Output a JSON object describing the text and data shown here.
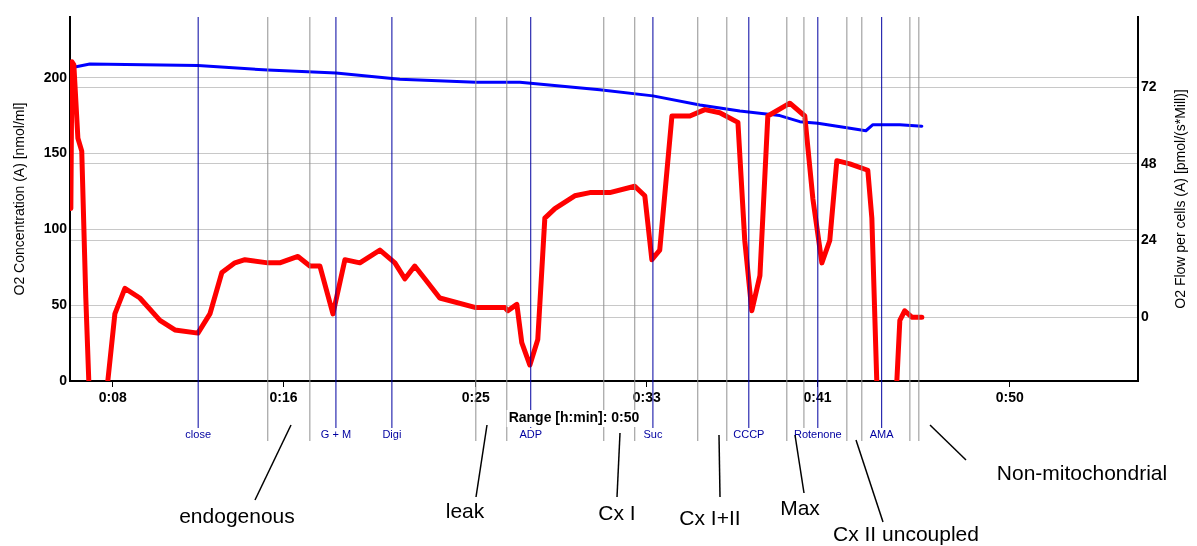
{
  "chart_data": {
    "type": "line",
    "xlabel": "Range [h:min]: 0:50",
    "ylabel": "O2 Concentration (A) [nmol/ml]",
    "y2label": "O2 Flow per cells (A) [pmol/(s*Mill)]",
    "xlim": [
      6,
      56
    ],
    "xticks": [
      {
        "value": 8,
        "label": "0:08"
      },
      {
        "value": 16,
        "label": "0:16"
      },
      {
        "value": 25,
        "label": "0:25"
      },
      {
        "value": 33,
        "label": "0:33"
      },
      {
        "value": 41,
        "label": "0:41"
      },
      {
        "value": 50,
        "label": "0:50"
      }
    ],
    "ylim": [
      0,
      240
    ],
    "yticks": [
      0,
      50,
      100,
      150,
      200
    ],
    "y2lim": [
      -20,
      94
    ],
    "y2ticks": [
      0,
      24,
      48,
      72
    ],
    "grid": "y",
    "legend": false,
    "marker": "none",
    "line_style": "solid",
    "series": [
      {
        "color": "#0000ff",
        "x": [
          6.23,
          6.93,
          11.99,
          15.26,
          18.45,
          21.44,
          25.0,
          27.06,
          30.8,
          33.29,
          35.49,
          37.36,
          39.23,
          40.17,
          41.01,
          42.37,
          43.26,
          43.59,
          44.85,
          45.88
        ],
        "values": [
          207,
          209,
          208,
          205,
          203,
          199,
          197,
          197,
          192,
          188,
          182,
          178,
          175,
          171,
          170,
          167,
          165,
          169,
          169,
          168
        ]
      },
      {
        "color": "#ff0000",
        "axis": "y2",
        "x": [
          6.04,
          6.09,
          6.18,
          6.37,
          6.55,
          6.74,
          6.88,
          7.3,
          7.77,
          8.1,
          8.57,
          9.27,
          10.21,
          10.91,
          11.99,
          12.55,
          13.11,
          13.72,
          14.19,
          15.26,
          15.82,
          16.67,
          17.23,
          17.7,
          18.31,
          18.87,
          19.57,
          20.51,
          21.21,
          21.68,
          22.14,
          22.61,
          23.31,
          25.0,
          26.36,
          26.5,
          26.92,
          27.15,
          27.53,
          27.9,
          28.23,
          28.7,
          29.63,
          30.34,
          31.27,
          32.44,
          32.91,
          33.24,
          33.61,
          34.18,
          35.02,
          35.72,
          36.42,
          37.27,
          37.59,
          37.92,
          38.3,
          38.67,
          39.7,
          40.4,
          40.78,
          41.2,
          41.57,
          41.9,
          42.51,
          43.35,
          43.54,
          43.77,
          44.2,
          44.71,
          44.85,
          45.08,
          45.41,
          45.88
        ],
        "values": [
          34,
          80,
          79,
          56,
          52,
          6,
          -20,
          null,
          -20,
          1,
          9,
          6,
          -1,
          -4,
          -5,
          1,
          14,
          17,
          18,
          17,
          17,
          19,
          16,
          16,
          1,
          18,
          17,
          21,
          17,
          12,
          16,
          12,
          6,
          3,
          3,
          2,
          4,
          -8,
          -15,
          -7,
          31,
          34,
          38,
          39,
          39,
          41,
          38,
          18,
          21,
          63,
          63,
          65,
          64,
          61,
          24,
          2,
          13,
          63,
          67,
          63,
          37,
          17,
          24,
          49,
          48,
          46,
          31,
          -20,
          null,
          -20,
          -1,
          2,
          0,
          0
        ]
      }
    ],
    "ref_lines": [
      {
        "axis": "x",
        "value": 12.0,
        "label": "close",
        "color": "#0000a0"
      },
      {
        "axis": "x",
        "value": 15.26,
        "label": null,
        "color": "#909090"
      },
      {
        "axis": "x",
        "value": 17.23,
        "label": null,
        "color": "#909090"
      },
      {
        "axis": "x",
        "value": 18.45,
        "label": "G + M",
        "color": "#0000a0"
      },
      {
        "axis": "x",
        "value": 21.07,
        "label": "Digi",
        "color": "#0000a0"
      },
      {
        "axis": "x",
        "value": 25.0,
        "label": null,
        "color": "#909090"
      },
      {
        "axis": "x",
        "value": 26.45,
        "label": null,
        "color": "#909090"
      },
      {
        "axis": "x",
        "value": 27.57,
        "label": "ADP",
        "color": "#0000a0"
      },
      {
        "axis": "x",
        "value": 30.99,
        "label": null,
        "color": "#909090"
      },
      {
        "axis": "x",
        "value": 32.44,
        "label": null,
        "color": "#909090"
      },
      {
        "axis": "x",
        "value": 33.29,
        "label": "Suc",
        "color": "#0000a0"
      },
      {
        "axis": "x",
        "value": 35.39,
        "label": null,
        "color": "#909090"
      },
      {
        "axis": "x",
        "value": 36.75,
        "label": null,
        "color": "#909090"
      },
      {
        "axis": "x",
        "value": 37.78,
        "label": "CCCP",
        "color": "#0000a0"
      },
      {
        "axis": "x",
        "value": 39.56,
        "label": null,
        "color": "#909090"
      },
      {
        "axis": "x",
        "value": 40.36,
        "label": null,
        "color": "#909090"
      },
      {
        "axis": "x",
        "value": 41.01,
        "label": "Rotenone",
        "color": "#0000a0"
      },
      {
        "axis": "x",
        "value": 42.37,
        "label": null,
        "color": "#909090"
      },
      {
        "axis": "x",
        "value": 43.07,
        "label": null,
        "color": "#909090"
      },
      {
        "axis": "x",
        "value": 44.0,
        "label": "AMA",
        "color": "#0000a0"
      },
      {
        "axis": "x",
        "value": 45.32,
        "label": null,
        "color": "#909090"
      },
      {
        "axis": "x",
        "value": 45.74,
        "label": null,
        "color": "#909090"
      }
    ],
    "annotations": [
      "endogenous",
      "leak",
      "Cx I",
      "Cx I+II",
      "Max",
      "Cx II uncoupled",
      "Non-mitochondrial"
    ]
  }
}
